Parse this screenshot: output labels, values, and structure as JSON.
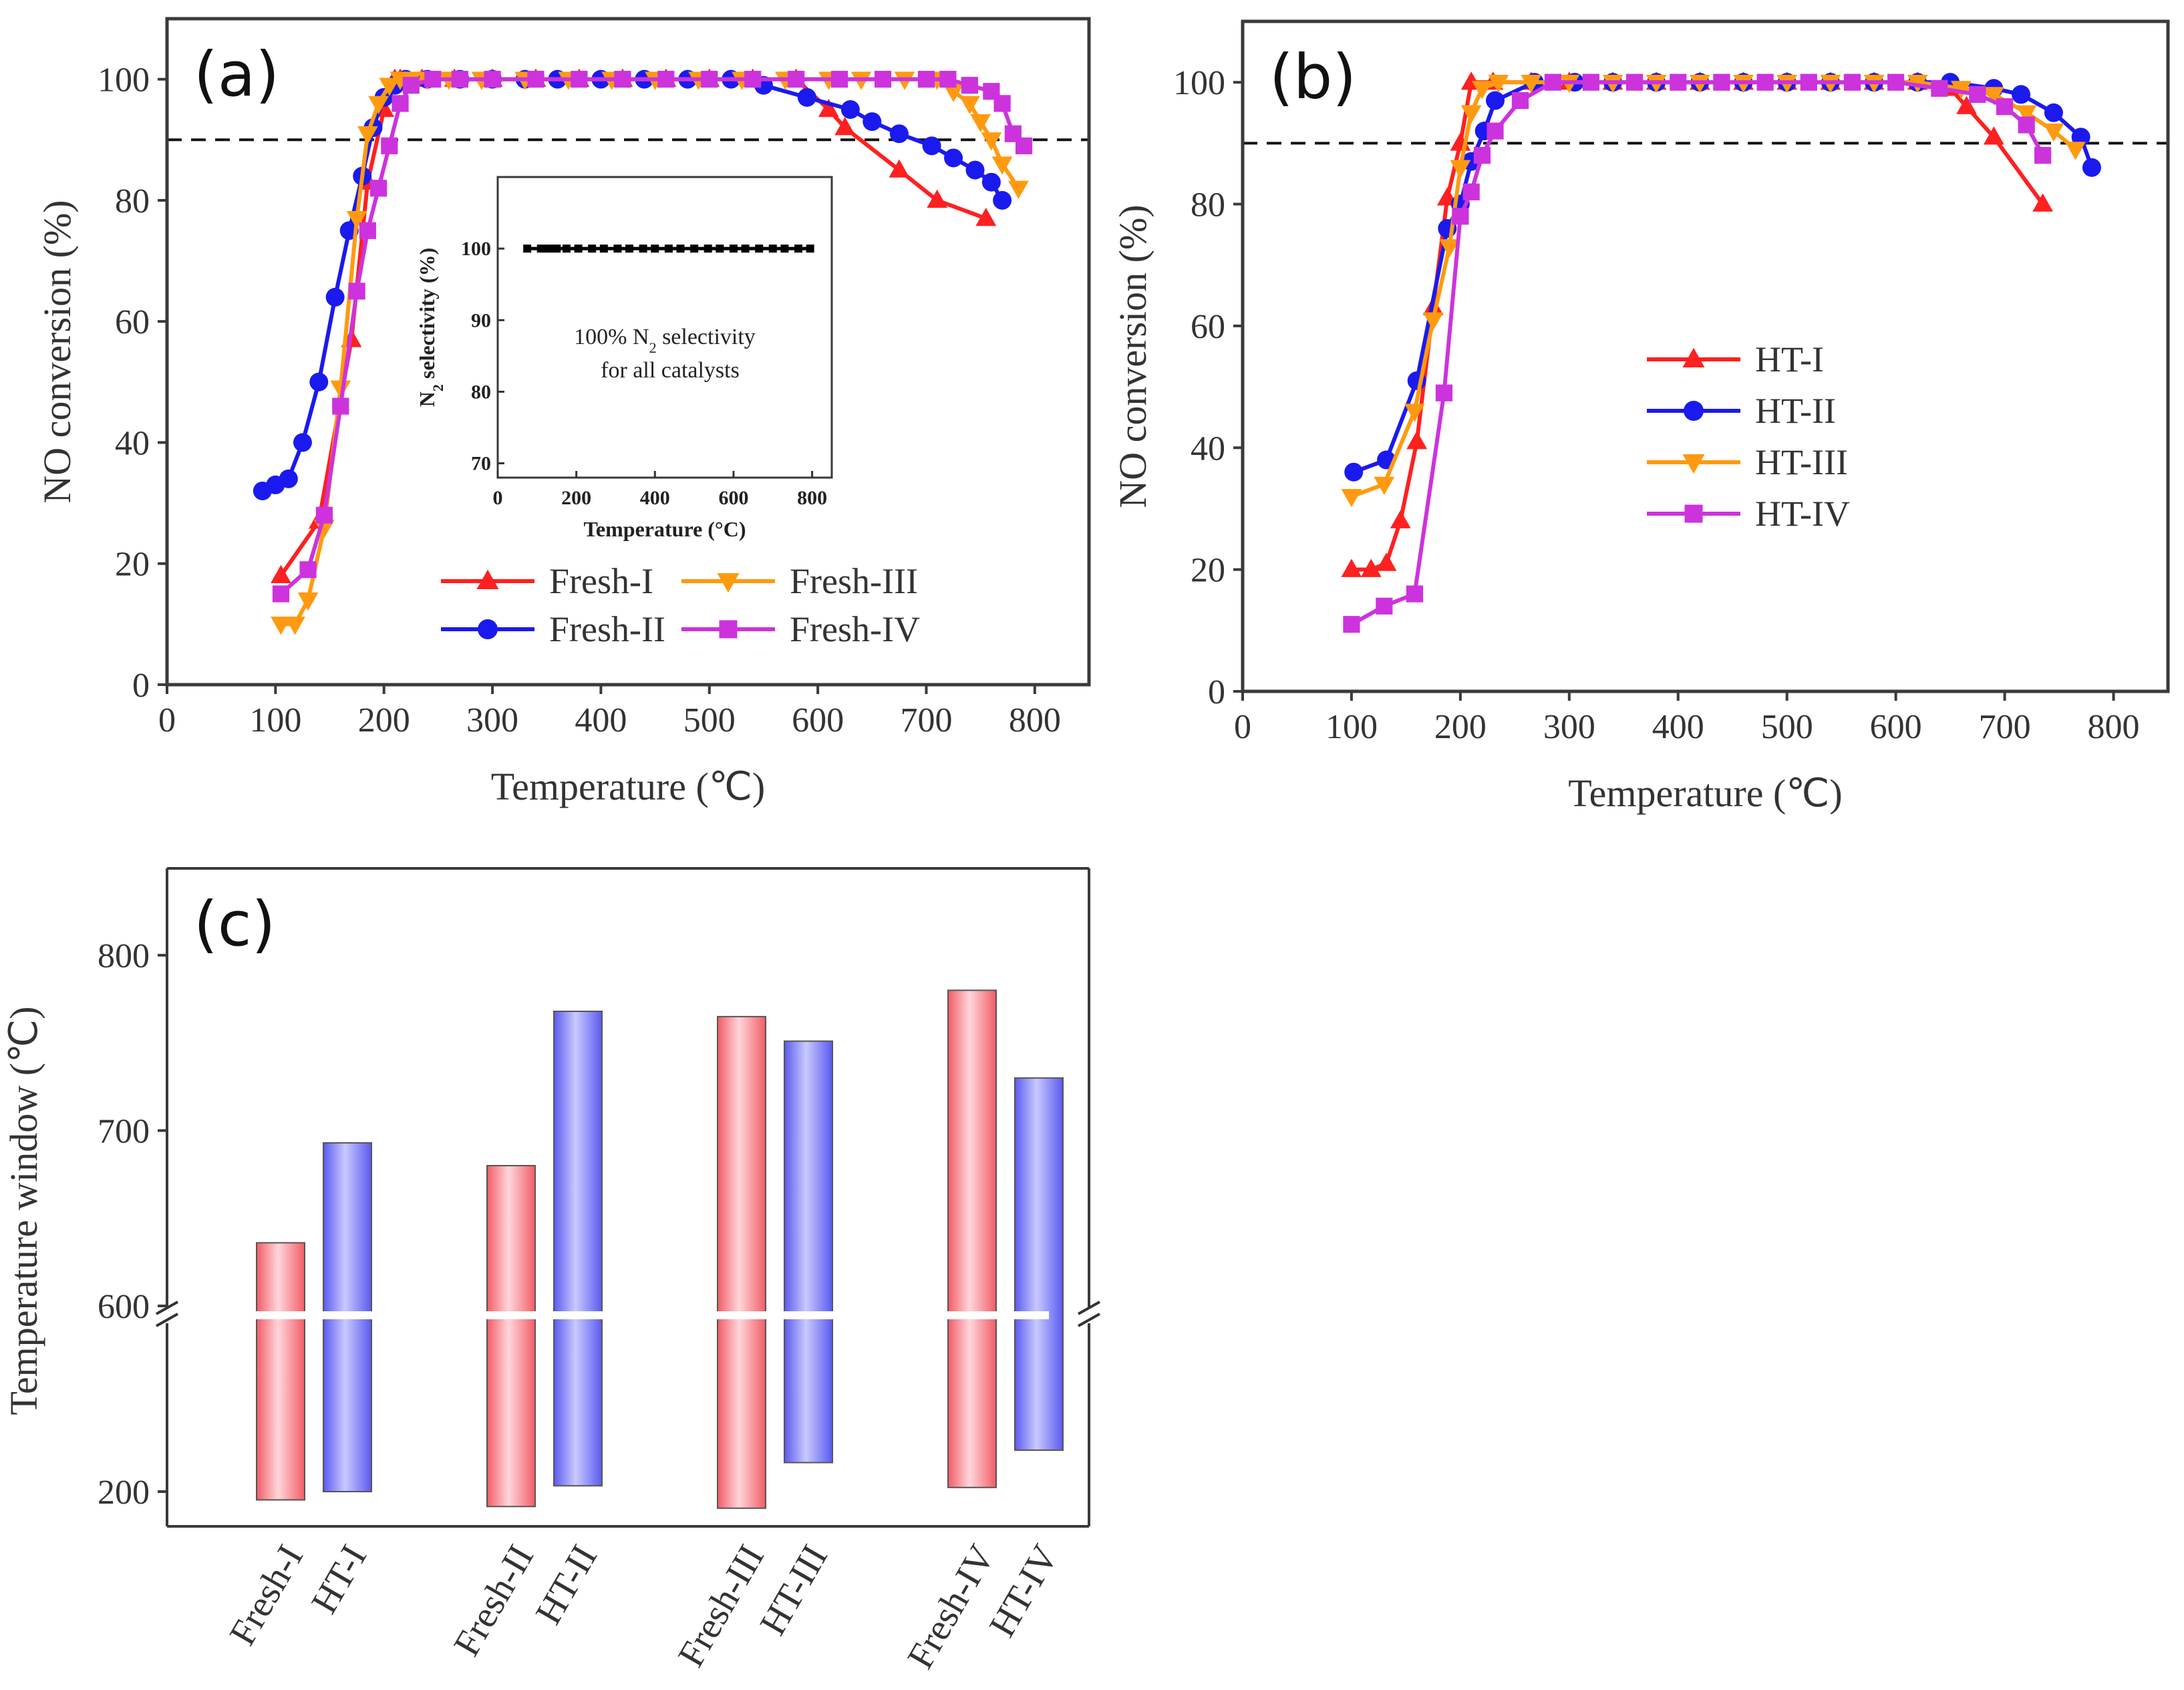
{
  "colors": {
    "s1": "#ff2020",
    "s2": "#1a1aee",
    "s3": "#ff9a10",
    "s4": "#cc33dd",
    "bar_red": "#f25c66",
    "bar_blue": "#5a5af0"
  },
  "chart_data": [
    {
      "type": "line",
      "panel_label": "(a)",
      "xlabel": "Temperature (℃)",
      "ylabel": "NO conversion (%)",
      "xlim": [
        0,
        850
      ],
      "ylim": [
        0,
        110
      ],
      "xticks": [
        "0",
        "100",
        "200",
        "300",
        "400",
        "500",
        "600",
        "700",
        "800"
      ],
      "yticks": [
        "0",
        "20",
        "40",
        "60",
        "80",
        "100"
      ],
      "reference_line_y": 90,
      "series": [
        {
          "name": "Fresh-I",
          "marker": "triangle-up",
          "color": "#ff2020",
          "x": [
            105,
            140,
            170,
            185,
            200,
            210,
            215,
            235,
            265,
            300,
            340,
            380,
            420,
            460,
            500,
            540,
            580,
            610,
            625,
            675,
            710,
            755
          ],
          "y": [
            18,
            27,
            57,
            83,
            95,
            100,
            100,
            100,
            100,
            100,
            100,
            100,
            100,
            100,
            100,
            100,
            100,
            95,
            92,
            85,
            80,
            77
          ]
        },
        {
          "name": "Fresh-II",
          "marker": "circle",
          "color": "#1a1aee",
          "x": [
            88,
            100,
            112,
            125,
            140,
            155,
            168,
            180,
            190,
            200,
            210,
            220,
            240,
            270,
            300,
            330,
            360,
            400,
            440,
            480,
            520,
            550,
            590,
            630,
            650,
            675,
            705,
            725,
            745,
            760,
            770
          ],
          "y": [
            32,
            33,
            34,
            40,
            50,
            64,
            75,
            84,
            92,
            97,
            99,
            100,
            100,
            100,
            100,
            100,
            100,
            100,
            100,
            100,
            100,
            99,
            97,
            95,
            93,
            91,
            89,
            87,
            85,
            83,
            80
          ]
        },
        {
          "name": "Fresh-III",
          "marker": "triangle-down",
          "color": "#ff9a10",
          "x": [
            105,
            118,
            130,
            145,
            160,
            175,
            185,
            195,
            205,
            215,
            225,
            240,
            260,
            290,
            330,
            370,
            410,
            450,
            490,
            530,
            570,
            610,
            640,
            680,
            710,
            725,
            740,
            750,
            760,
            770,
            785
          ],
          "y": [
            10,
            10,
            14,
            26,
            49,
            77,
            91,
            96,
            99,
            100,
            100,
            100,
            100,
            100,
            100,
            100,
            100,
            100,
            100,
            100,
            100,
            100,
            100,
            100,
            100,
            98,
            96,
            93,
            90,
            86,
            82
          ]
        },
        {
          "name": "Fresh-IV",
          "marker": "square",
          "color": "#cc33dd",
          "x": [
            105,
            130,
            145,
            160,
            175,
            185,
            195,
            205,
            215,
            225,
            245,
            270,
            300,
            340,
            380,
            420,
            460,
            500,
            540,
            580,
            620,
            660,
            700,
            720,
            740,
            760,
            770,
            780,
            790
          ],
          "y": [
            15,
            19,
            28,
            46,
            65,
            75,
            82,
            89,
            96,
            99,
            100,
            100,
            100,
            100,
            100,
            100,
            100,
            100,
            100,
            100,
            100,
            100,
            100,
            100,
            99,
            98,
            96,
            91,
            89
          ]
        }
      ],
      "inset": {
        "type": "scatter",
        "xlabel": "Temperature (°C)",
        "ylabel": "N2 selectivity (%)",
        "xticks": [
          "0",
          "200",
          "400",
          "600",
          "800"
        ],
        "yticks": [
          "70",
          "80",
          "90",
          "100"
        ],
        "xlim": [
          0,
          850
        ],
        "ylim": [
          68,
          110
        ],
        "x": [
          75,
          110,
          130,
          150,
          175,
          205,
          240,
          270,
          305,
          335,
          370,
          400,
          435,
          465,
          500,
          535,
          565,
          600,
          630,
          665,
          700,
          730,
          765,
          795
        ],
        "y": [
          100,
          100,
          100,
          100,
          100,
          100,
          100,
          100,
          100,
          100,
          100,
          100,
          100,
          100,
          100,
          100,
          100,
          100,
          100,
          100,
          100,
          100,
          100,
          100
        ],
        "note_line1_pre": "100% N",
        "note_line1_sub": "2",
        "note_line1_post": " selectivity",
        "note_line2": "for all catalysts",
        "ylabel_pre": "N",
        "ylabel_sub": "2",
        "ylabel_post": " selectivity (%)"
      }
    },
    {
      "type": "line",
      "panel_label": "(b)",
      "xlabel": "Temperature (℃)",
      "ylabel": "NO conversion (%)",
      "xlim": [
        0,
        850
      ],
      "ylim": [
        0,
        110
      ],
      "xticks": [
        "0",
        "100",
        "200",
        "300",
        "400",
        "500",
        "600",
        "700",
        "800"
      ],
      "yticks": [
        "0",
        "20",
        "40",
        "60",
        "80",
        "100"
      ],
      "reference_line_y": 90,
      "series": [
        {
          "name": "HT-I",
          "marker": "triangle-up",
          "color": "#ff2020",
          "x": [
            100,
            118,
            132,
            145,
            160,
            175,
            188,
            200,
            210,
            230,
            265,
            300,
            340,
            380,
            420,
            460,
            500,
            540,
            580,
            620,
            650,
            665,
            690,
            735
          ],
          "y": [
            20,
            20,
            21,
            28,
            41,
            63,
            81,
            90,
            100,
            100,
            100,
            100,
            100,
            100,
            100,
            100,
            100,
            100,
            100,
            100,
            99,
            96,
            91,
            80
          ]
        },
        {
          "name": "HT-II",
          "marker": "circle",
          "color": "#1a1aee",
          "x": [
            102,
            132,
            160,
            188,
            200,
            210,
            222,
            232,
            268,
            305,
            340,
            380,
            420,
            460,
            500,
            540,
            580,
            620,
            650,
            690,
            715,
            745,
            770,
            780
          ],
          "y": [
            36,
            38,
            51,
            76,
            80,
            87,
            92,
            97,
            100,
            100,
            100,
            100,
            100,
            100,
            100,
            100,
            100,
            100,
            100,
            99,
            98,
            95,
            91,
            86
          ]
        },
        {
          "name": "HT-III",
          "marker": "triangle-down",
          "color": "#ff9a10",
          "x": [
            100,
            130,
            158,
            175,
            190,
            200,
            210,
            220,
            235,
            265,
            300,
            340,
            380,
            420,
            460,
            500,
            540,
            580,
            620,
            660,
            690,
            720,
            745,
            765
          ],
          "y": [
            32,
            34,
            46,
            61,
            73,
            86,
            95,
            99,
            100,
            100,
            100,
            100,
            100,
            100,
            100,
            100,
            100,
            100,
            100,
            99,
            98,
            95,
            92,
            89
          ]
        },
        {
          "name": "HT-IV",
          "marker": "square",
          "color": "#cc33dd",
          "x": [
            100,
            130,
            158,
            185,
            200,
            210,
            220,
            232,
            255,
            285,
            320,
            360,
            400,
            440,
            480,
            520,
            560,
            600,
            640,
            675,
            700,
            720,
            735
          ],
          "y": [
            11,
            14,
            16,
            49,
            78,
            82,
            88,
            92,
            97,
            100,
            100,
            100,
            100,
            100,
            100,
            100,
            100,
            100,
            99,
            98,
            96,
            93,
            88
          ]
        }
      ]
    },
    {
      "type": "bar",
      "subtype": "floating-range",
      "panel_label": "(c)",
      "ylabel": "Temperature window (℃)",
      "yticks": [
        "200",
        "600",
        "700",
        "800"
      ],
      "axis_break": "between 200 and 600",
      "categories": [
        "Fresh-I",
        "HT-I",
        "Fresh-II",
        "HT-II",
        "Fresh-III",
        "HT-III",
        "Fresh-IV",
        "HT-IV"
      ],
      "series": [
        {
          "name": "Fresh",
          "color": "#f25c66",
          "categories": [
            "Fresh-I",
            "Fresh-II",
            "Fresh-III",
            "Fresh-IV"
          ],
          "low": [
            190,
            182,
            180,
            205
          ],
          "high": [
            636,
            680,
            765,
            780
          ]
        },
        {
          "name": "HT",
          "color": "#5a5af0",
          "categories": [
            "HT-I",
            "HT-II",
            "HT-III",
            "HT-IV"
          ],
          "low": [
            200,
            207,
            235,
            250
          ],
          "high": [
            693,
            768,
            751,
            730
          ]
        }
      ]
    }
  ]
}
